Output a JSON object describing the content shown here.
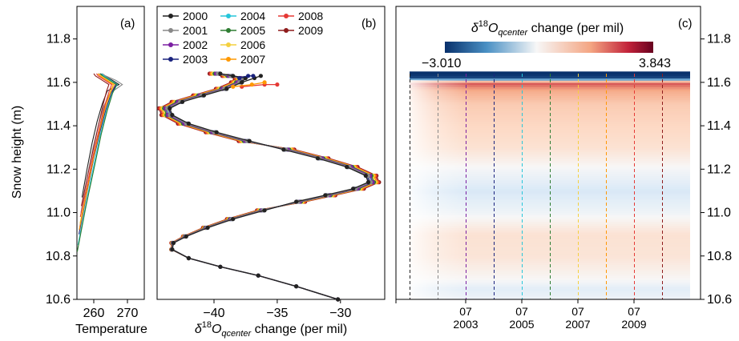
{
  "chart_data": [
    {
      "panel": "a",
      "type": "line",
      "panel_label": "(a)",
      "xlabel": "Temperature",
      "ylabel": "Snow height (m)",
      "xlim": [
        255,
        275
      ],
      "ylim": [
        10.6,
        11.95
      ],
      "xticks": [
        260,
        270
      ],
      "yticks": [
        10.6,
        10.8,
        11.0,
        11.2,
        11.4,
        11.6,
        11.8
      ],
      "ytick_labels": [
        "10.6",
        "10.8",
        "11.0",
        "11.2",
        "11.4",
        "11.6",
        "11.8"
      ],
      "series": [
        {
          "color": "#222222",
          "points": [
            [
              256.5,
              11.07
            ],
            [
              258,
              11.2
            ],
            [
              259.5,
              11.32
            ],
            [
              261,
              11.42
            ],
            [
              262.5,
              11.5
            ],
            [
              264,
              11.56
            ],
            [
              267.5,
              11.59
            ],
            [
              265.5,
              11.61
            ],
            [
              263,
              11.63
            ],
            [
              262,
              11.64
            ]
          ]
        },
        {
          "color": "#888888",
          "points": [
            [
              256.2,
              11.0
            ],
            [
              258,
              11.16
            ],
            [
              259.8,
              11.3
            ],
            [
              261.5,
              11.41
            ],
            [
              263,
              11.49
            ],
            [
              264.8,
              11.55
            ],
            [
              268.5,
              11.59
            ],
            [
              266.5,
              11.61
            ],
            [
              263.5,
              11.63
            ],
            [
              262.5,
              11.64
            ]
          ]
        },
        {
          "color": "#7b1fa2",
          "points": [
            [
              255.8,
              10.93
            ],
            [
              257.8,
              11.1
            ],
            [
              259.8,
              11.26
            ],
            [
              261.6,
              11.38
            ],
            [
              263.2,
              11.48
            ],
            [
              265,
              11.55
            ],
            [
              266.5,
              11.59
            ],
            [
              265,
              11.61
            ],
            [
              262.5,
              11.63
            ],
            [
              261.5,
              11.64
            ]
          ]
        },
        {
          "color": "#1a237e",
          "points": [
            [
              255.6,
              10.9
            ],
            [
              257.8,
              11.08
            ],
            [
              260,
              11.25
            ],
            [
              261.8,
              11.37
            ],
            [
              263.5,
              11.47
            ],
            [
              265.2,
              11.55
            ],
            [
              266.8,
              11.59
            ],
            [
              264.8,
              11.61
            ],
            [
              262.5,
              11.63
            ],
            [
              261.8,
              11.64
            ]
          ]
        },
        {
          "color": "#26c6da",
          "points": [
            [
              255.3,
              10.85
            ],
            [
              257.8,
              11.05
            ],
            [
              260.2,
              11.23
            ],
            [
              262,
              11.36
            ],
            [
              263.8,
              11.47
            ],
            [
              265.5,
              11.55
            ],
            [
              267,
              11.59
            ],
            [
              265,
              11.61
            ],
            [
              263,
              11.63
            ],
            [
              262.3,
              11.64
            ]
          ]
        },
        {
          "color": "#2e7d32",
          "points": [
            [
              255.1,
              10.82
            ],
            [
              257.7,
              11.03
            ],
            [
              260.3,
              11.22
            ],
            [
              262.2,
              11.36
            ],
            [
              264,
              11.47
            ],
            [
              265.6,
              11.55
            ],
            [
              266.8,
              11.59
            ],
            [
              264.6,
              11.61
            ],
            [
              262.6,
              11.63
            ],
            [
              262,
              11.64
            ]
          ]
        },
        {
          "color": "#f4d03f",
          "points": [
            [
              255.9,
              10.95
            ],
            [
              258.2,
              11.12
            ],
            [
              260.3,
              11.28
            ],
            [
              262,
              11.4
            ],
            [
              263.6,
              11.49
            ],
            [
              265.2,
              11.56
            ],
            [
              266.2,
              11.59
            ],
            [
              264.2,
              11.61
            ],
            [
              262.2,
              11.63
            ],
            [
              261.5,
              11.64
            ]
          ]
        },
        {
          "color": "#ff9800",
          "points": [
            [
              255.7,
              10.92
            ],
            [
              258,
              11.1
            ],
            [
              260.1,
              11.27
            ],
            [
              261.9,
              11.39
            ],
            [
              263.5,
              11.49
            ],
            [
              265,
              11.56
            ],
            [
              265.8,
              11.59
            ],
            [
              263.8,
              11.61
            ],
            [
              261.8,
              11.63
            ],
            [
              261.2,
              11.64
            ]
          ]
        },
        {
          "color": "#e53935",
          "points": [
            [
              256,
              10.98
            ],
            [
              258.2,
              11.14
            ],
            [
              260.2,
              11.29
            ],
            [
              261.8,
              11.4
            ],
            [
              263.2,
              11.49
            ],
            [
              264.6,
              11.56
            ],
            [
              265.3,
              11.59
            ],
            [
              263.3,
              11.61
            ],
            [
              261.3,
              11.63
            ],
            [
              260.8,
              11.64
            ]
          ]
        },
        {
          "color": "#8e1c1c",
          "points": [
            [
              256.3,
              11.03
            ],
            [
              258.3,
              11.18
            ],
            [
              260.1,
              11.31
            ],
            [
              261.5,
              11.41
            ],
            [
              262.8,
              11.5
            ],
            [
              263.8,
              11.56
            ],
            [
              264.5,
              11.59
            ],
            [
              262.5,
              11.61
            ],
            [
              260.5,
              11.63
            ],
            [
              260,
              11.64
            ]
          ]
        }
      ]
    },
    {
      "panel": "b",
      "type": "line",
      "panel_label": "(b)",
      "xlabel_prefix": "δ",
      "xlabel_sup": "18",
      "xlabel_main": "O",
      "xlabel_sub": "qcenter",
      "xlabel_suffix": "  change (per mil)",
      "xlim": [
        -44.5,
        -26.5
      ],
      "ylim": [
        10.6,
        11.95
      ],
      "xticks": [
        -40,
        -35,
        -30
      ],
      "xtick_labels": [
        "−40",
        "−35",
        "−30"
      ],
      "legend_entries": [
        {
          "label": "2000",
          "color": "#222222"
        },
        {
          "label": "2001",
          "color": "#888888"
        },
        {
          "label": "2002",
          "color": "#7b1fa2"
        },
        {
          "label": "2003",
          "color": "#1a237e"
        },
        {
          "label": "2004",
          "color": "#26c6da"
        },
        {
          "label": "2005",
          "color": "#2e7d32"
        },
        {
          "label": "2006",
          "color": "#f4d03f"
        },
        {
          "label": "2007",
          "color": "#ff9800"
        },
        {
          "label": "2008",
          "color": "#e53935"
        },
        {
          "label": "2009",
          "color": "#8e1c1c"
        }
      ],
      "base_curve": [
        [
          -30.2,
          10.6
        ],
        [
          -33.5,
          10.66
        ],
        [
          -36.5,
          10.71
        ],
        [
          -39.5,
          10.75
        ],
        [
          -42,
          10.79
        ],
        [
          -43.3,
          10.83
        ],
        [
          -43.2,
          10.86
        ],
        [
          -42.2,
          10.89
        ],
        [
          -40.5,
          10.93
        ],
        [
          -38.5,
          10.97
        ],
        [
          -36,
          11.01
        ],
        [
          -33.5,
          11.05
        ],
        [
          -31.2,
          11.08
        ],
        [
          -29,
          11.11
        ],
        [
          -27.8,
          11.14
        ],
        [
          -28,
          11.17
        ],
        [
          -29.5,
          11.21
        ],
        [
          -31.8,
          11.25
        ],
        [
          -34.5,
          11.29
        ],
        [
          -37.2,
          11.33
        ],
        [
          -39.8,
          11.37
        ],
        [
          -42,
          11.41
        ],
        [
          -43.3,
          11.45
        ],
        [
          -43.5,
          11.48
        ],
        [
          -42.5,
          11.51
        ],
        [
          -40.8,
          11.54
        ],
        [
          -39,
          11.57
        ],
        [
          -37.8,
          11.6
        ],
        [
          -37.5,
          11.62
        ],
        [
          -38.5,
          11.63
        ],
        [
          -39.5,
          11.64
        ]
      ],
      "top_tails": [
        {
          "color": "#222222",
          "points": [
            [
              -37.8,
              11.6
            ],
            [
              -36.8,
              11.62
            ],
            [
              -36.3,
              11.63
            ]
          ]
        },
        {
          "color": "#e53935",
          "points": [
            [
              -37.8,
              11.58
            ],
            [
              -36,
              11.59
            ],
            [
              -35,
              11.59
            ]
          ]
        },
        {
          "color": "#ff9800",
          "points": [
            [
              -38.5,
              11.58
            ],
            [
              -37,
              11.59
            ],
            [
              -36,
              11.6
            ]
          ]
        },
        {
          "color": "#1a237e",
          "points": [
            [
              -38,
              11.62
            ],
            [
              -37.3,
              11.63
            ],
            [
              -36.9,
              11.63
            ]
          ]
        }
      ]
    },
    {
      "panel": "c",
      "type": "heatmap",
      "panel_label": "(c)",
      "colorbar_prefix": "δ",
      "colorbar_sup": "18",
      "colorbar_main": "O",
      "colorbar_sub": "qcenter",
      "colorbar_suffix": " change (per mil)",
      "colorbar_min_label": "−3.010",
      "colorbar_max_label": "3.843",
      "vmin": -3.01,
      "vmax": 3.843,
      "colormap": "RdBu_r",
      "ylim": [
        10.6,
        11.95
      ],
      "yticks_right": [
        10.6,
        10.8,
        11.0,
        11.2,
        11.4,
        11.6,
        11.8
      ],
      "ytick_labels_right": [
        "10.6",
        "10.8",
        "11.0",
        "11.2",
        "11.4",
        "11.6",
        "11.8"
      ],
      "xtick_months": [
        "07",
        "07",
        "07",
        "07"
      ],
      "xtick_years": [
        "2003",
        "2005",
        "2007",
        "2009"
      ],
      "year_line_colors": [
        "#222222",
        "#888888",
        "#7b1fa2",
        "#1a237e",
        "#26c6da",
        "#2e7d32",
        "#f4d03f",
        "#ff9800",
        "#e53935",
        "#8e1c1c"
      ],
      "vertical_profile": [
        {
          "h": 10.6,
          "v": -0.1
        },
        {
          "h": 10.65,
          "v": -0.25
        },
        {
          "h": 10.7,
          "v": 0.05
        },
        {
          "h": 10.8,
          "v": 0.4
        },
        {
          "h": 10.9,
          "v": 0.45
        },
        {
          "h": 11.0,
          "v": -0.1
        },
        {
          "h": 11.1,
          "v": -0.35
        },
        {
          "h": 11.2,
          "v": -0.05
        },
        {
          "h": 11.3,
          "v": 0.45
        },
        {
          "h": 11.4,
          "v": 0.65
        },
        {
          "h": 11.5,
          "v": 0.95
        },
        {
          "h": 11.56,
          "v": 1.6
        },
        {
          "h": 11.6,
          "v": 2.6
        },
        {
          "h": 11.62,
          "v": -2.6
        },
        {
          "h": 11.64,
          "v": -3.0
        }
      ]
    }
  ]
}
